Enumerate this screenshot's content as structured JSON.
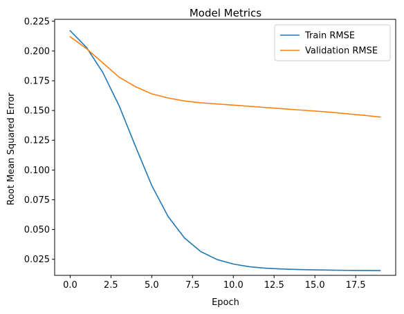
{
  "chart_data": {
    "type": "line",
    "title": "Model Metrics",
    "xlabel": "Epoch",
    "ylabel": "Root Mean Squared Error",
    "xlim": [
      -0.95,
      19.95
    ],
    "ylim": [
      0.0115,
      0.2266
    ],
    "xticks": [
      0.0,
      2.5,
      5.0,
      7.5,
      10.0,
      12.5,
      15.0,
      17.5
    ],
    "xtick_labels": [
      "0.0",
      "2.5",
      "5.0",
      "7.5",
      "10.0",
      "12.5",
      "15.0",
      "17.5"
    ],
    "yticks": [
      0.025,
      0.05,
      0.075,
      0.1,
      0.125,
      0.15,
      0.175,
      0.2,
      0.225
    ],
    "ytick_labels": [
      "0.025",
      "0.050",
      "0.075",
      "0.100",
      "0.125",
      "0.150",
      "0.175",
      "0.200",
      "0.225"
    ],
    "grid": false,
    "legend_position": "top-right",
    "x": [
      0,
      1,
      2,
      3,
      4,
      5,
      6,
      7,
      8,
      9,
      10,
      11,
      12,
      13,
      14,
      15,
      16,
      17,
      18,
      19
    ],
    "series": [
      {
        "name": "Train RMSE",
        "color": "#1f77b4",
        "values": [
          0.217,
          0.203,
          0.182,
          0.154,
          0.12,
          0.087,
          0.061,
          0.043,
          0.0315,
          0.0248,
          0.021,
          0.0187,
          0.0175,
          0.0168,
          0.0164,
          0.0161,
          0.0159,
          0.0157,
          0.0156,
          0.0155
        ]
      },
      {
        "name": "Validation RMSE",
        "color": "#ff7f0e",
        "values": [
          0.212,
          0.202,
          0.19,
          0.178,
          0.17,
          0.164,
          0.1605,
          0.158,
          0.1565,
          0.1555,
          0.1545,
          0.1535,
          0.1525,
          0.1515,
          0.1505,
          0.1495,
          0.1485,
          0.1472,
          0.146,
          0.1445
        ]
      }
    ]
  }
}
